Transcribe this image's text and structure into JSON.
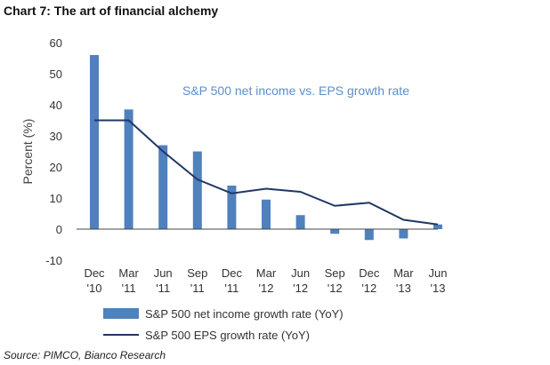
{
  "title": "Chart 7:  The art of financial alchemy",
  "source": "Source: PIMCO, Bianco Research",
  "chart_data": {
    "type": "bar",
    "categories": [
      [
        "Dec",
        "'10"
      ],
      [
        "Mar",
        "'11"
      ],
      [
        "Jun",
        "'11"
      ],
      [
        "Sep",
        "'11"
      ],
      [
        "Dec",
        "'11"
      ],
      [
        "Mar",
        "'12"
      ],
      [
        "Jun",
        "'12"
      ],
      [
        "Sep",
        "'12"
      ],
      [
        "Dec",
        "'12"
      ],
      [
        "Mar",
        "'13"
      ],
      [
        "Jun",
        "'13"
      ]
    ],
    "series": [
      {
        "name": "S&P 500 net income growth rate (YoY)",
        "type": "bar",
        "color": "#4f81bd",
        "values": [
          56,
          38.5,
          27,
          25,
          14,
          9.5,
          4.5,
          -1.5,
          -3.5,
          -3,
          1.5
        ]
      },
      {
        "name": "S&P 500 EPS growth rate (YoY)",
        "type": "line",
        "color": "#1f3864",
        "values": [
          35,
          35,
          25,
          16,
          11.5,
          13,
          12,
          7.5,
          8.5,
          3,
          1.5
        ]
      }
    ],
    "annotation": "S&P 500 net income vs. EPS growth rate",
    "xlabel": "",
    "ylabel": "Percent (%)",
    "ylim": [
      -10,
      60
    ],
    "yticks": [
      -10,
      0,
      10,
      20,
      30,
      40,
      50,
      60
    ],
    "grid": false,
    "legend_position": "bottom-left"
  }
}
